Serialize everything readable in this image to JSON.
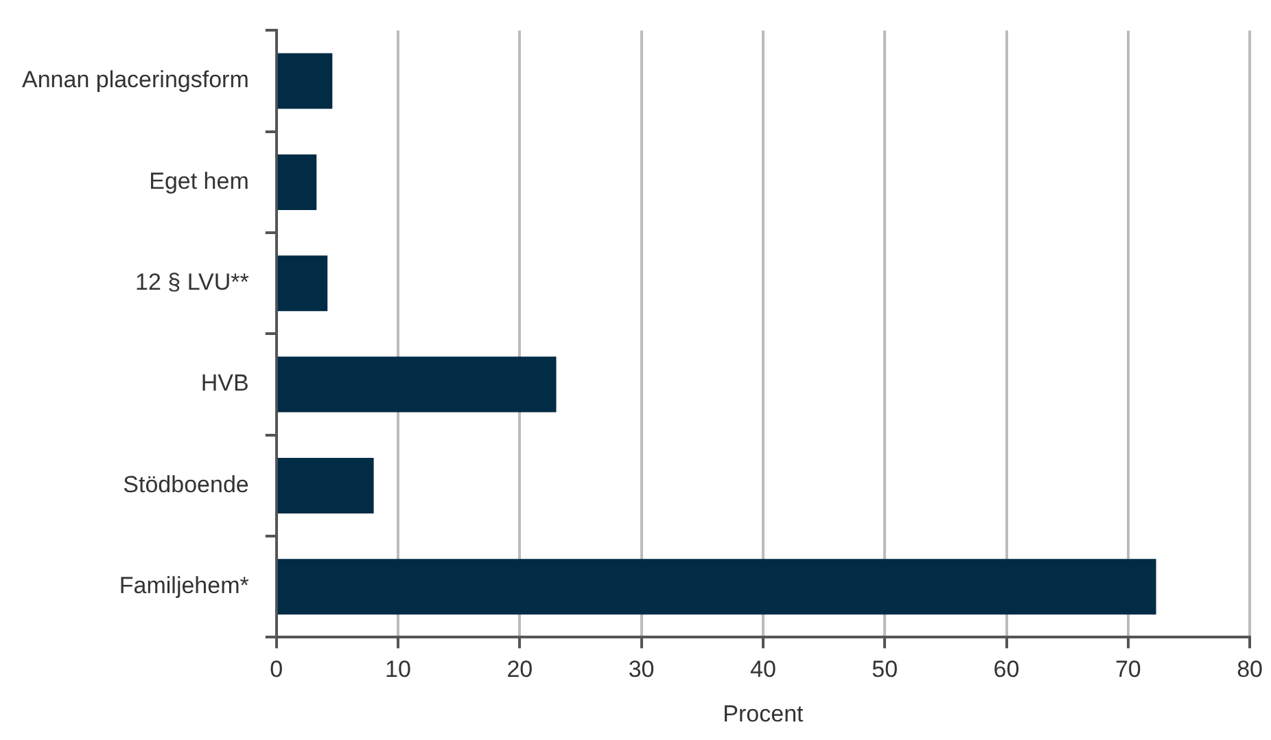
{
  "chart_data": {
    "type": "bar",
    "orientation": "horizontal",
    "xlabel": "Procent",
    "categories": [
      "Annan placeringsform",
      "Eget hem",
      "12 § LVU**",
      "HVB",
      "Stödboende",
      "Familjehem*"
    ],
    "values": [
      4.6,
      3.3,
      4.2,
      23.0,
      8.0,
      72.3
    ],
    "color": "#022b45",
    "xlim": [
      0,
      80
    ],
    "xticks": [
      0,
      10,
      20,
      30,
      40,
      50,
      60,
      70,
      80
    ],
    "grid": "x",
    "legend": false
  }
}
